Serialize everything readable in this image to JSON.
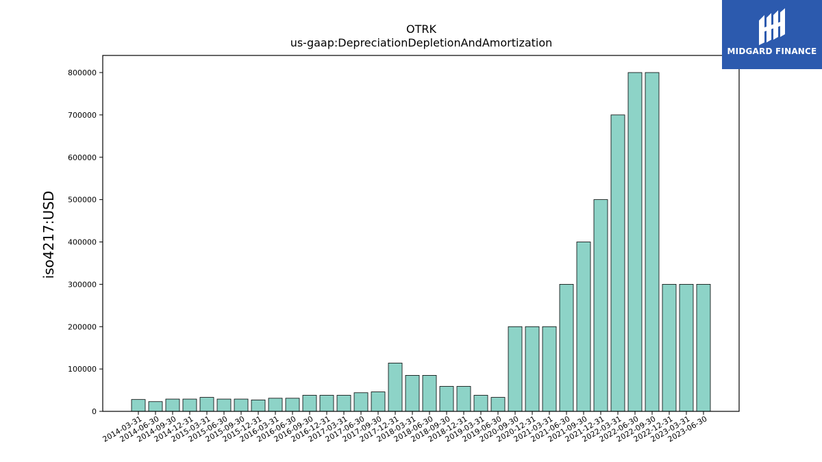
{
  "chart_data": {
    "type": "bar",
    "title": "OTRK",
    "subtitle": "us-gaap:DepreciationDepletionAndAmortization",
    "ylabel": "iso4217:USD",
    "ylim": [
      0,
      840000
    ],
    "yticks": [
      0,
      100000,
      200000,
      300000,
      400000,
      500000,
      600000,
      700000,
      800000
    ],
    "grid": false,
    "bar_color": "#8dd3c7",
    "categories": [
      "2014-03-31",
      "2014-06-30",
      "2014-09-30",
      "2014-12-31",
      "2015-03-31",
      "2015-06-30",
      "2015-09-30",
      "2015-12-31",
      "2016-03-31",
      "2016-06-30",
      "2016-09-30",
      "2016-12-31",
      "2017-03-31",
      "2017-06-30",
      "2017-09-30",
      "2017-12-31",
      "2018-03-31",
      "2018-06-30",
      "2018-09-30",
      "2018-12-31",
      "2019-03-31",
      "2019-06-30",
      "2020-09-30",
      "2020-12-31",
      "2021-03-31",
      "2021-06-30",
      "2021-09-30",
      "2021-12-31",
      "2022-03-31",
      "2022-06-30",
      "2022-09-30",
      "2022-12-31",
      "2023-03-31",
      "2023-06-30"
    ],
    "values": [
      28000,
      23000,
      29000,
      29000,
      33000,
      29000,
      29000,
      27000,
      31000,
      31000,
      38000,
      38000,
      38000,
      44000,
      46000,
      114000,
      85000,
      85000,
      59000,
      59000,
      38000,
      33000,
      200000,
      200000,
      200000,
      300000,
      400000,
      500000,
      700000,
      800000,
      800000,
      300000,
      300000,
      300000
    ]
  },
  "logo": {
    "text": "MIDGARD FINANCE",
    "icon": "midgard-logo-icon",
    "color": "#2c5aae"
  }
}
